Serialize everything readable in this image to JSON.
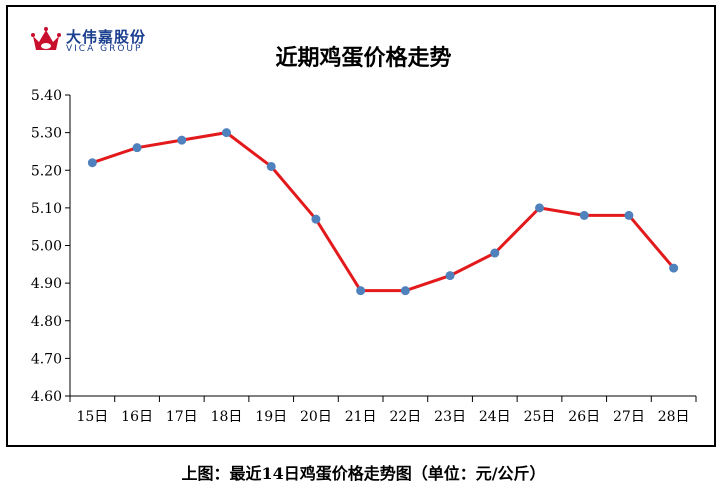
{
  "logo": {
    "name": "大伟嘉股份",
    "subtitle": "VICA GROUP"
  },
  "caption": "上图：最近14日鸡蛋价格走势图（单位：元/公斤）",
  "colors": {
    "line": "#e31a1c",
    "marker": "#4f81bd",
    "axis": "#000000"
  },
  "chart_data": {
    "type": "line",
    "title": "近期鸡蛋价格走势",
    "categories": [
      "15日",
      "16日",
      "17日",
      "18日",
      "19日",
      "20日",
      "21日",
      "22日",
      "23日",
      "24日",
      "25日",
      "26日",
      "27日",
      "28日"
    ],
    "values": [
      5.22,
      5.26,
      5.28,
      5.3,
      5.21,
      5.07,
      4.88,
      4.88,
      4.92,
      4.98,
      5.1,
      5.08,
      5.08,
      4.94
    ],
    "ylim": [
      4.6,
      5.4
    ],
    "yticks": [
      "4.60",
      "4.70",
      "4.80",
      "4.90",
      "5.00",
      "5.10",
      "5.20",
      "5.30",
      "5.40"
    ],
    "grid": false,
    "xlabel": "",
    "ylabel": ""
  }
}
